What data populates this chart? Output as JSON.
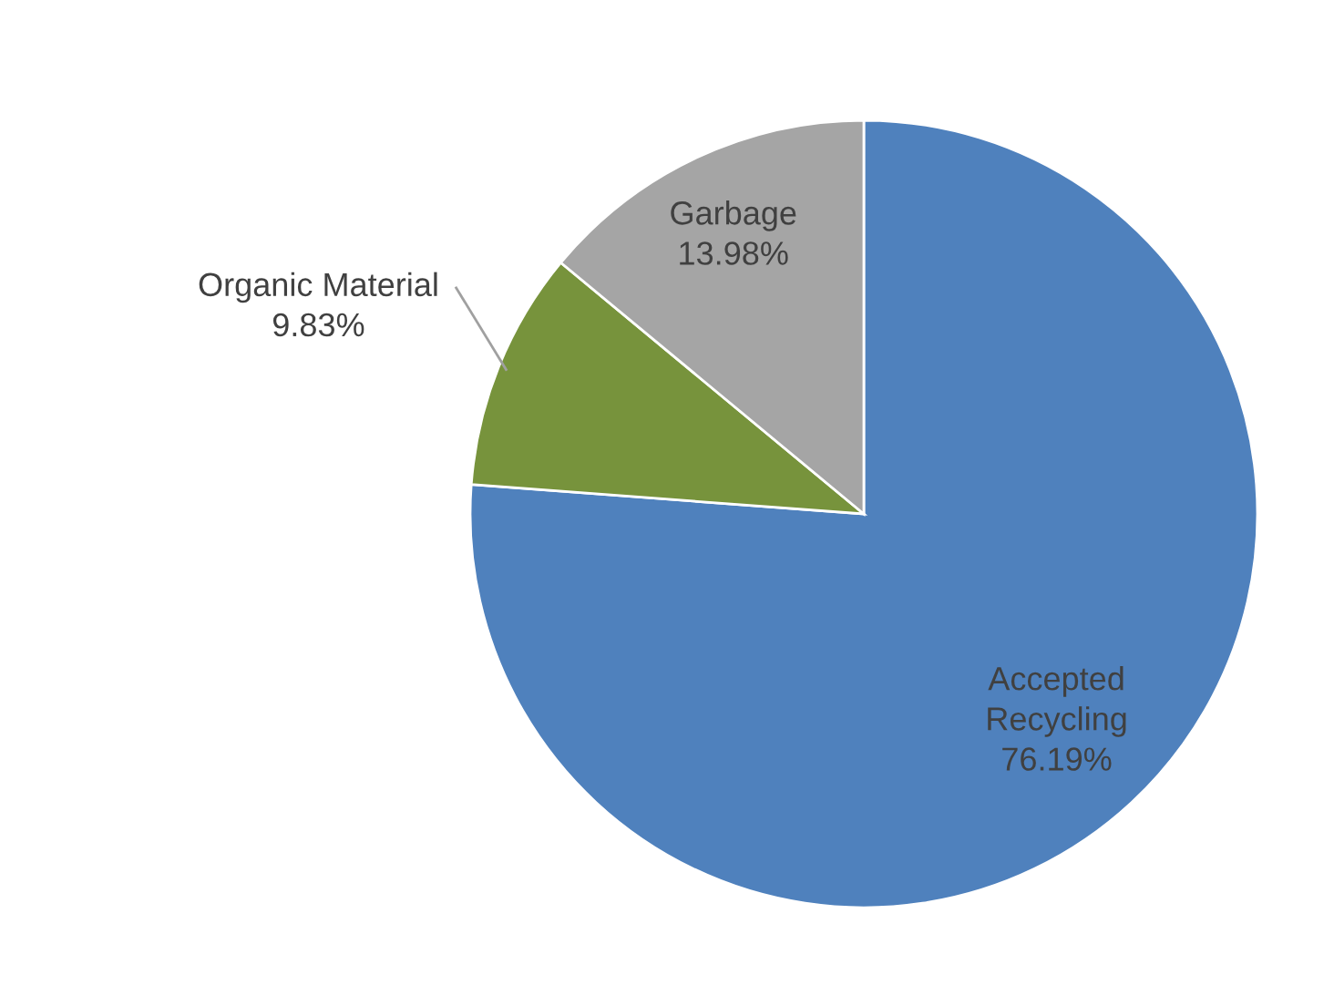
{
  "chart_data": {
    "type": "pie",
    "categories": [
      "Accepted\nRecycling",
      "Organic Material",
      "Garbage"
    ],
    "values": [
      76.19,
      9.83,
      13.98
    ],
    "colors": [
      "#4f81bd",
      "#77933c",
      "#a5a5a5"
    ],
    "value_labels": [
      "76.19%",
      "9.83%",
      "13.98%"
    ],
    "legend": false
  }
}
